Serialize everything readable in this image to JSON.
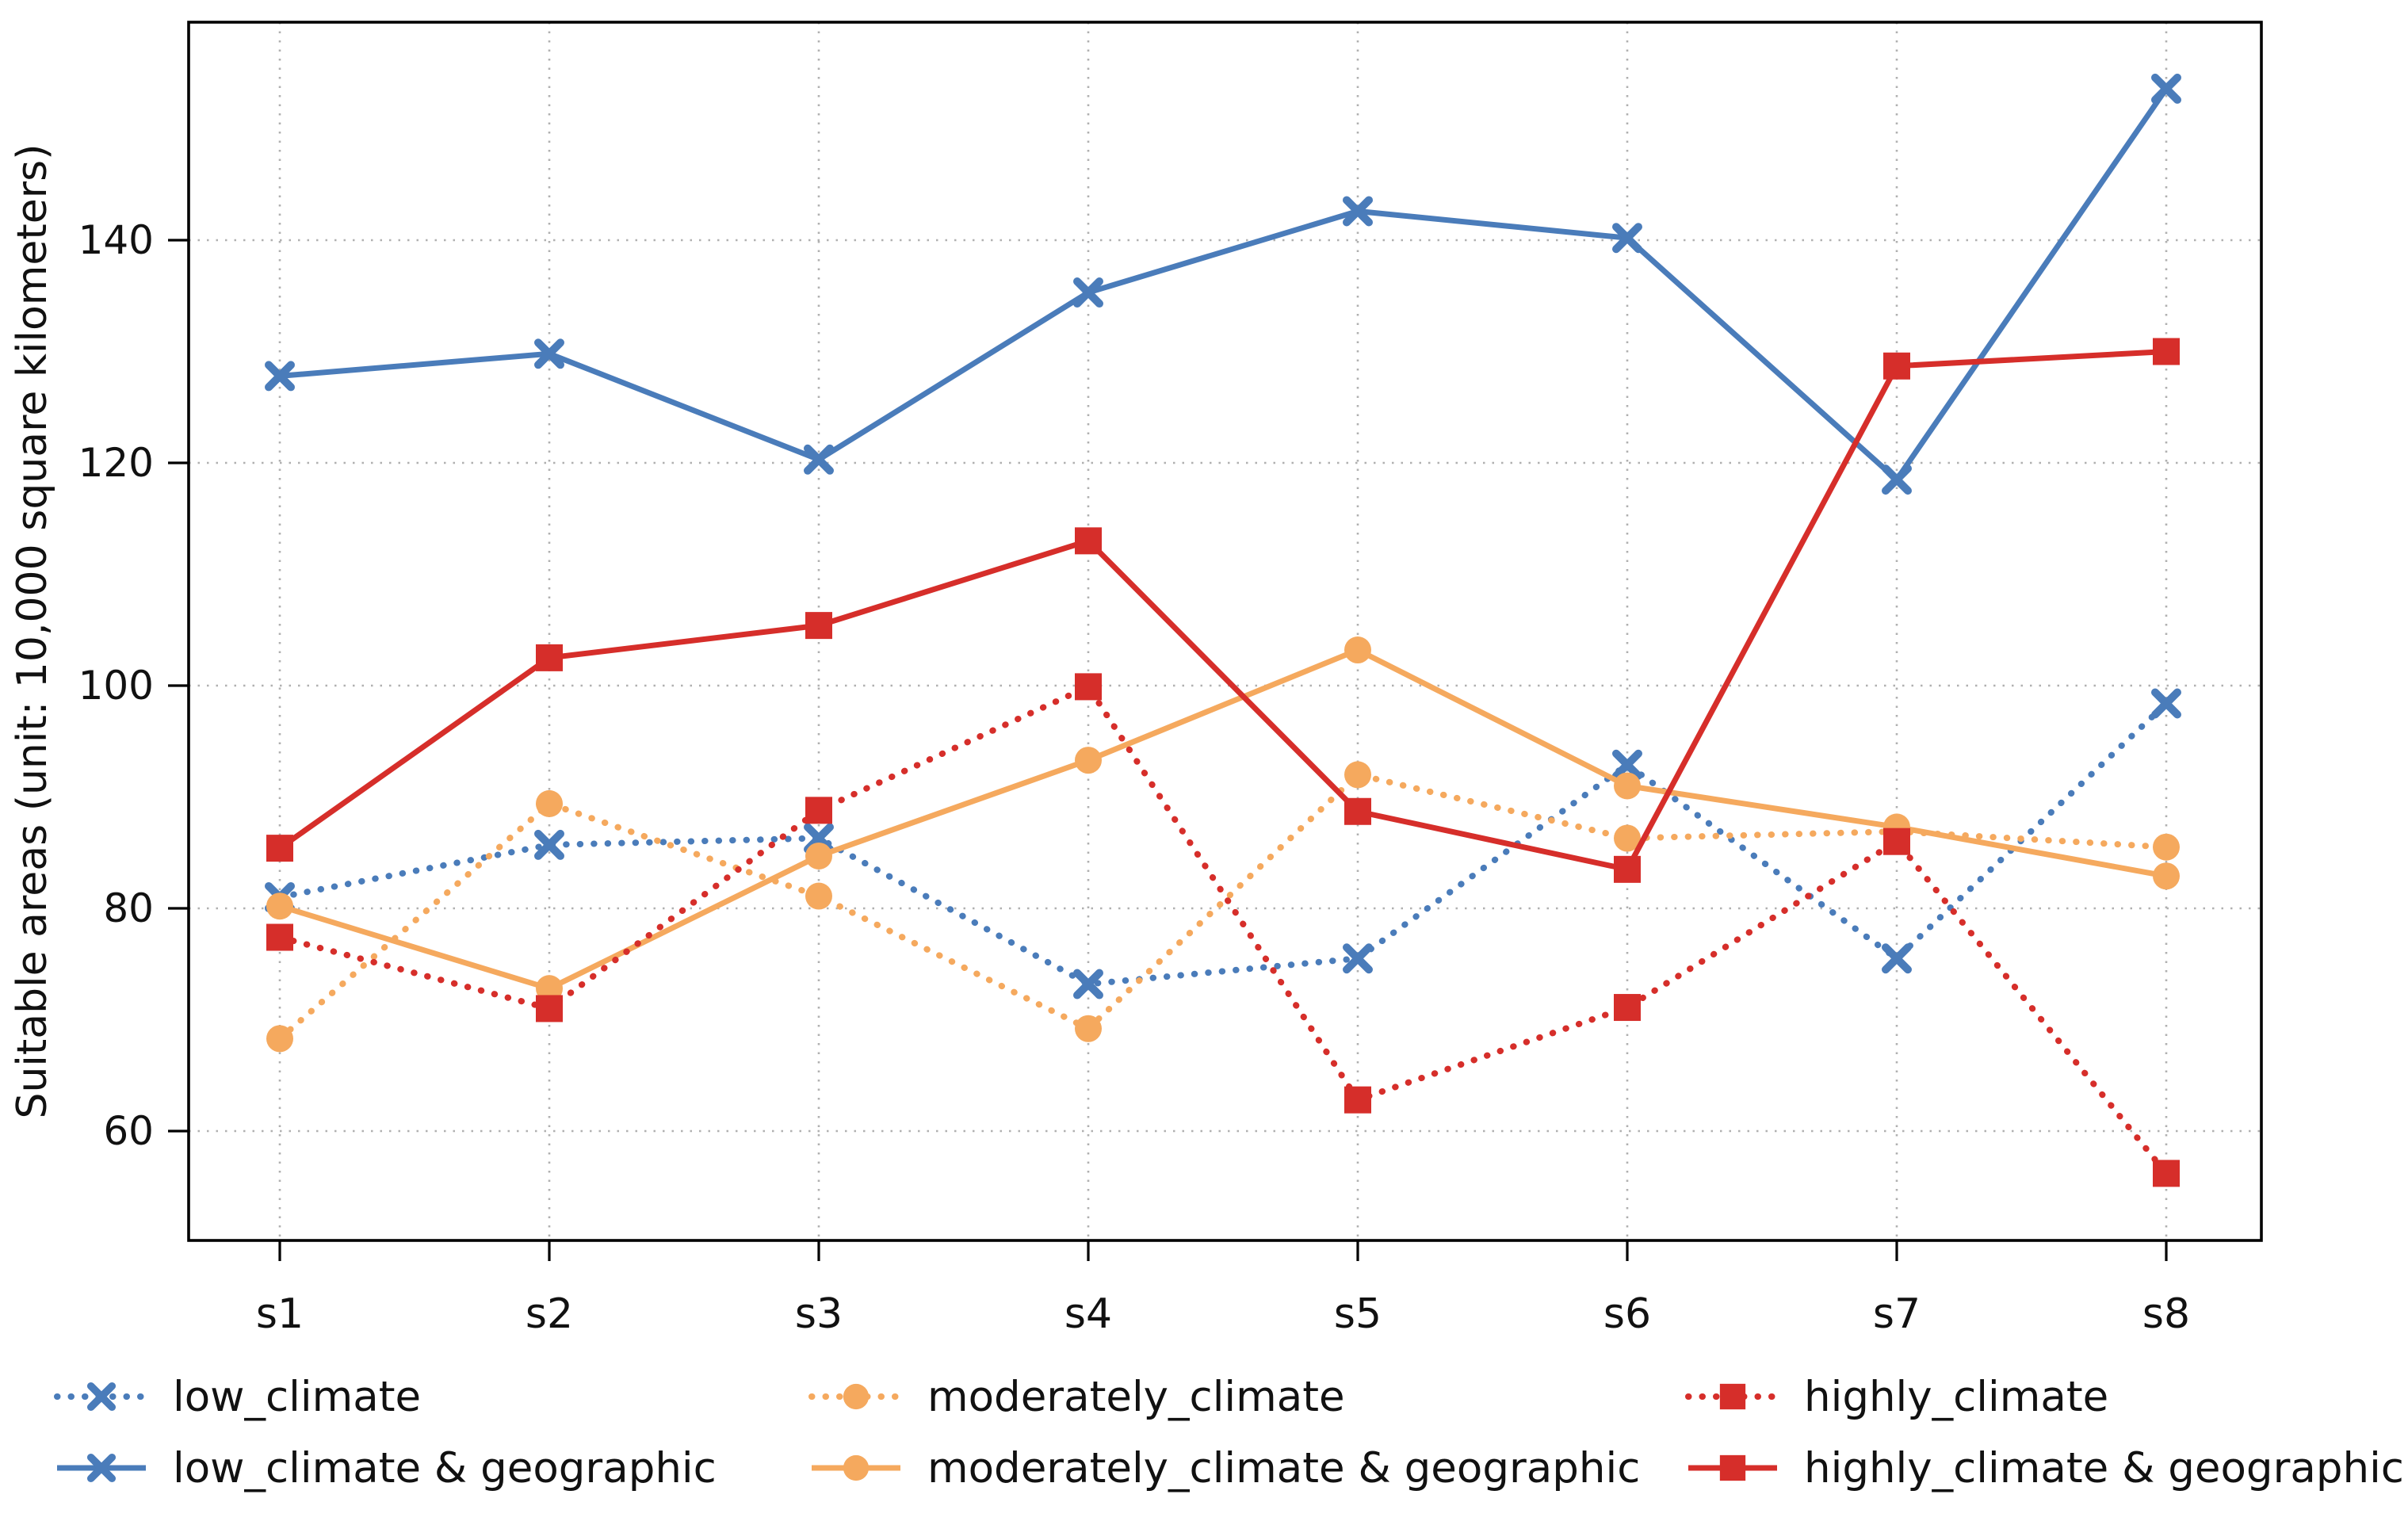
{
  "figure": {
    "background": "#ffffff",
    "axis_color": "#000000",
    "grid_color": "#b0b0b0"
  },
  "chart_data": {
    "type": "line",
    "title": "",
    "xlabel": "",
    "ylabel": "Suitable areas (unit: 10,000 square kilometers)",
    "categories": [
      "s1",
      "s2",
      "s3",
      "s4",
      "s5",
      "s6",
      "s7",
      "s8"
    ],
    "yticks": [
      60,
      80,
      100,
      120,
      140
    ],
    "ytick_labels": [
      "60",
      "80",
      "100",
      "120",
      "140"
    ],
    "ylim": [
      50.2,
      159.6
    ],
    "grid": true,
    "legend_position": "bottom",
    "series": [
      {
        "name": "low_climate",
        "color": "#4a7cba",
        "style": "dotted",
        "marker": "x",
        "values": [
          81.0,
          85.7,
          86.3,
          73.2,
          75.5,
          92.9,
          75.5,
          98.4
        ]
      },
      {
        "name": "low_climate & geographic",
        "color": "#4a7cba",
        "style": "solid",
        "marker": "x",
        "values": [
          127.8,
          129.8,
          120.3,
          135.3,
          142.6,
          140.2,
          118.5,
          153.6
        ]
      },
      {
        "name": "moderately_climate",
        "color": "#f5a95e",
        "style": "dotted",
        "marker": "circle",
        "values": [
          68.3,
          89.4,
          81.1,
          69.2,
          92.0,
          86.3,
          86.9,
          85.5
        ]
      },
      {
        "name": "moderately_climate & geographic",
        "color": "#f5a95e",
        "style": "solid",
        "marker": "circle",
        "values": [
          80.2,
          72.8,
          84.7,
          93.3,
          103.2,
          91.0,
          87.3,
          82.9
        ]
      },
      {
        "name": "highly_climate",
        "color": "#d62e2a",
        "style": "dotted",
        "marker": "square",
        "values": [
          77.4,
          71.0,
          88.8,
          99.9,
          62.8,
          71.1,
          86.0,
          56.2
        ]
      },
      {
        "name": "highly_climate & geographic",
        "color": "#d62e2a",
        "style": "solid",
        "marker": "square",
        "values": [
          85.4,
          102.5,
          105.4,
          113.0,
          88.7,
          83.5,
          128.7,
          130.0
        ]
      }
    ]
  },
  "legend": {
    "row1": [
      "low_climate",
      "moderately_climate",
      "highly_climate"
    ],
    "row2": [
      "low_climate & geographic",
      "moderately_climate & geographic",
      "highly_climate & geographic"
    ]
  }
}
